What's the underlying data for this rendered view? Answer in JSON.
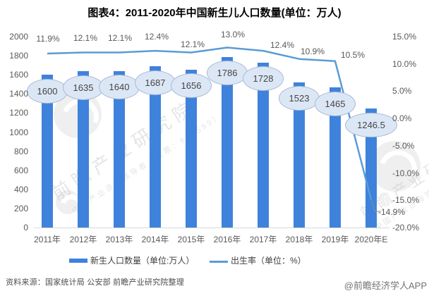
{
  "title": "图表4：2011-2020年中国新生儿人口数量(单位：万人)",
  "colors": {
    "bar": "#3e82dc",
    "line": "#5b9bd5",
    "bubble_fill": "#dce7f6",
    "bubble_border": "#a8b9d6",
    "axis_line": "#d9d9d9",
    "tick_text": "#595959",
    "leader_line": "#8c8c8c"
  },
  "chart_data": {
    "type": "bar+line combo",
    "title": "图表4：2011-2020年中国新生儿人口数量(单位：万人)",
    "categories": [
      "2011年",
      "2012年",
      "2013年",
      "2014年",
      "2015年",
      "2016年",
      "2017年",
      "2018年",
      "2019年",
      "2020年E"
    ],
    "series": [
      {
        "name": "新生人口数量（单位:万人）",
        "type": "bar",
        "axis": "left",
        "values": [
          1600,
          1635,
          1640,
          1687,
          1656,
          1786,
          1728,
          1523,
          1465,
          1246.5
        ],
        "labels": [
          "1600",
          "1635",
          "1640",
          "1687",
          "1656",
          "1786",
          "1728",
          "1523",
          "1465",
          "1246.5"
        ]
      },
      {
        "name": "出生率（单位：%）",
        "type": "line",
        "axis": "right",
        "values": [
          11.9,
          12.1,
          12.1,
          12.4,
          12.1,
          13.0,
          12.4,
          10.9,
          10.5,
          -14.9
        ],
        "labels": [
          "11.9%",
          "12.1%",
          "12.1%",
          "12.4%",
          "12.1%",
          "13.0%",
          "12.4%",
          "10.9%",
          "10.5%",
          "-14.9%"
        ]
      }
    ],
    "left_axis": {
      "min": 0,
      "max": 2000,
      "step": 200,
      "ticks": [
        "2000",
        "1800",
        "1600",
        "1400",
        "1200",
        "1000",
        "800",
        "600",
        "400",
        "200",
        "0"
      ]
    },
    "right_axis": {
      "min": -20,
      "max": 15,
      "step": 5,
      "ticks": [
        "15.0%",
        "10.0%",
        "5.0%",
        "0.0%",
        "-5.0%",
        "-10.0%",
        "-15.0%",
        "-20.0%"
      ]
    },
    "grid": "off",
    "legend_position": "bottom"
  },
  "footer": {
    "source": "资料来源：国家统计局 公安部 前瞻产业研究院整理",
    "credit": "@前瞻经济学人APP"
  },
  "watermark": {
    "name": "前瞻产业研究院",
    "tagline": "中国产业咨询领导者（股票：839599）"
  }
}
